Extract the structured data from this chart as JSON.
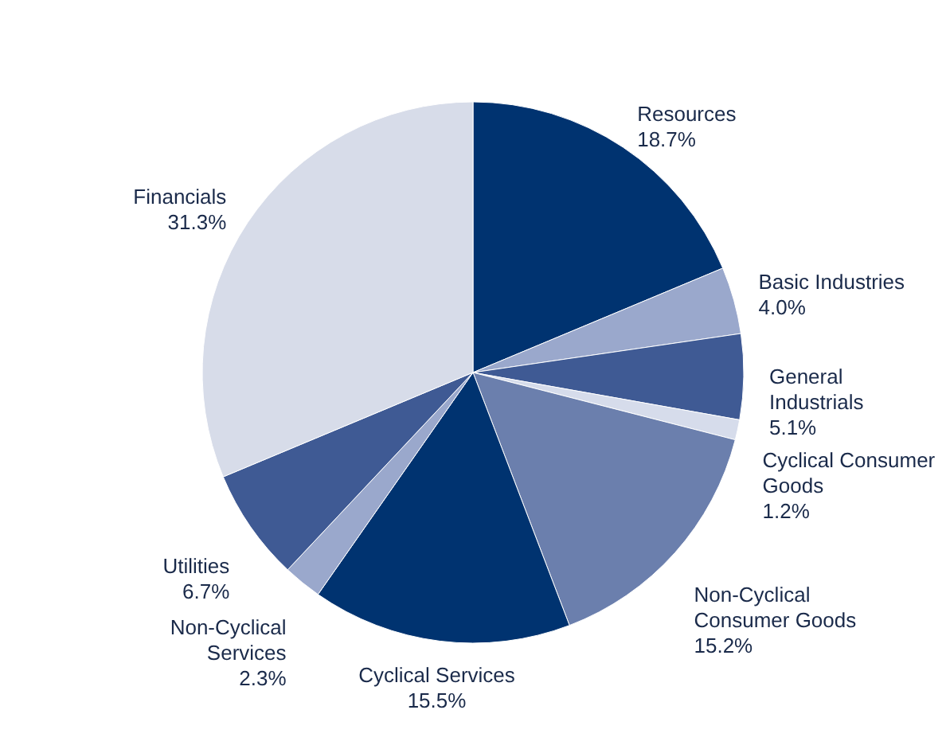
{
  "chart_data": {
    "type": "pie",
    "categories": [
      "Resources",
      "Basic Industries",
      "General Industrials",
      "Cyclical Consumer Goods",
      "Non-Cyclical Consumer Goods",
      "Cyclical Services",
      "Non-Cyclical Services",
      "Utilities",
      "Financials"
    ],
    "values": [
      18.7,
      4.0,
      5.1,
      1.2,
      15.2,
      15.5,
      2.3,
      6.7,
      31.3
    ],
    "value_labels": [
      "18.7%",
      "4.0%",
      "5.1%",
      "1.2%",
      "15.2%",
      "15.5%",
      "2.3%",
      "6.7%",
      "31.3%"
    ],
    "colors": [
      "#003370",
      "#9aa8cc",
      "#3f5a94",
      "#d6dceb",
      "#6b7fad",
      "#003370",
      "#9aa8cc",
      "#3f5a94",
      "#d7dce9"
    ]
  }
}
